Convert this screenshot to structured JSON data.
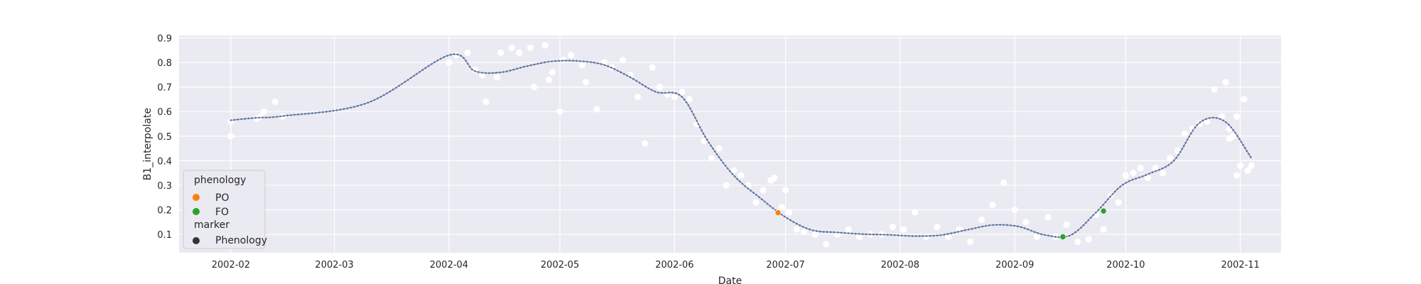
{
  "chart_data": {
    "type": "scatter",
    "title": "",
    "xlabel": "Date",
    "ylabel": "B1_interpolate",
    "x_ticks": [
      "2002-02",
      "2002-03",
      "2002-04",
      "2002-05",
      "2002-06",
      "2002-07",
      "2002-08",
      "2002-09",
      "2002-10",
      "2002-11"
    ],
    "y_ticks": [
      "0.1",
      "0.2",
      "0.3",
      "0.4",
      "0.5",
      "0.6",
      "0.7",
      "0.8",
      "0.9"
    ],
    "xlim": [
      "2002-01-18",
      "2002-11-12"
    ],
    "ylim": [
      0.025,
      0.91
    ],
    "grid": true,
    "legend": {
      "placement": "lower-left",
      "title_phenology": "phenology",
      "title_marker": "marker",
      "entries": [
        {
          "label": "PO",
          "color": "#ff7f0e"
        },
        {
          "label": "FO",
          "color": "#2ca02c"
        },
        {
          "label": "Phenology",
          "color": "#333333"
        }
      ]
    },
    "colors": {
      "background": "#eaeaf2",
      "grid": "#ffffff",
      "line": "#808080",
      "fitted": "#4c72b0",
      "observed": "#ffffff"
    },
    "series": [
      {
        "name": "",
        "kind": "observed",
        "x": [
          "2002-02-01",
          "2002-02-01",
          "2002-02-08",
          "2002-02-09",
          "2002-02-10",
          "2002-02-13",
          "2002-02-15",
          "2002-04-01",
          "2002-04-03",
          "2002-04-06",
          "2002-04-08",
          "2002-04-10",
          "2002-04-11",
          "2002-04-14",
          "2002-04-15",
          "2002-04-18",
          "2002-04-20",
          "2002-04-23",
          "2002-04-24",
          "2002-04-27",
          "2002-04-28",
          "2002-04-29",
          "2002-05-01",
          "2002-05-02",
          "2002-05-04",
          "2002-05-07",
          "2002-05-08",
          "2002-05-11",
          "2002-05-13",
          "2002-05-15",
          "2002-05-18",
          "2002-05-20",
          "2002-05-22",
          "2002-05-24",
          "2002-05-26",
          "2002-05-28",
          "2002-05-30",
          "2002-06-01",
          "2002-06-03",
          "2002-06-05",
          "2002-06-07",
          "2002-06-09",
          "2002-06-11",
          "2002-06-13",
          "2002-06-15",
          "2002-06-17",
          "2002-06-19",
          "2002-06-21",
          "2002-06-23",
          "2002-06-25",
          "2002-06-27",
          "2002-06-28",
          "2002-06-30",
          "2002-07-01",
          "2002-07-02",
          "2002-07-04",
          "2002-07-06",
          "2002-07-09",
          "2002-07-12",
          "2002-07-15",
          "2002-07-18",
          "2002-07-21",
          "2002-07-24",
          "2002-07-27",
          "2002-07-30",
          "2002-08-02",
          "2002-08-05",
          "2002-08-08",
          "2002-08-11",
          "2002-08-14",
          "2002-08-17",
          "2002-08-20",
          "2002-08-23",
          "2002-08-26",
          "2002-08-29",
          "2002-09-01",
          "2002-09-04",
          "2002-09-07",
          "2002-09-10",
          "2002-09-12",
          "2002-09-15",
          "2002-09-18",
          "2002-09-21",
          "2002-09-23",
          "2002-09-25",
          "2002-09-27",
          "2002-09-29",
          "2002-10-01",
          "2002-10-03",
          "2002-10-05",
          "2002-10-07",
          "2002-10-09",
          "2002-10-11",
          "2002-10-13",
          "2002-10-15",
          "2002-10-17",
          "2002-10-19",
          "2002-10-21",
          "2002-10-23",
          "2002-10-25",
          "2002-10-27",
          "2002-10-29",
          "2002-10-31",
          "2002-11-02"
        ],
        "y": [
          0.5,
          0.56,
          0.57,
          0.58,
          0.6,
          0.64,
          0.58,
          0.8,
          0.83,
          0.84,
          0.77,
          0.75,
          0.64,
          0.74,
          0.84,
          0.86,
          0.84,
          0.86,
          0.7,
          0.87,
          0.73,
          0.76,
          0.6,
          0.81,
          0.83,
          0.79,
          0.72,
          0.61,
          0.8,
          0.78,
          0.81,
          0.75,
          0.66,
          0.47,
          0.78,
          0.7,
          0.67,
          0.66,
          0.68,
          0.65,
          0.55,
          0.48,
          0.41,
          0.45,
          0.3,
          0.36,
          0.34,
          0.3,
          0.23,
          0.28,
          0.32,
          0.33,
          0.21,
          0.28,
          0.19,
          0.12,
          0.11,
          0.1,
          0.06,
          0.1,
          0.12,
          0.09,
          0.1,
          0.1,
          0.13,
          0.12,
          0.19,
          0.09,
          0.13,
          0.09,
          0.12,
          0.07,
          0.16,
          0.22,
          0.31,
          0.2,
          0.15,
          0.09,
          0.17,
          0.09,
          0.14,
          0.07,
          0.08,
          0.18,
          0.12,
          0.26,
          0.23,
          0.34,
          0.35,
          0.37,
          0.33,
          0.37,
          0.35,
          0.41,
          0.44,
          0.51,
          0.53,
          0.55,
          0.56,
          0.69,
          0.58,
          0.49,
          0.58,
          0.65
        ],
        "y_extra_late": [
          0.72,
          0.53,
          0.5,
          0.34,
          0.38,
          0.36,
          0.38
        ]
      },
      {
        "name": "",
        "kind": "fitted",
        "x": [
          "2002-02-01",
          "2002-02-08",
          "2002-02-15",
          "2002-03-10",
          "2002-04-01",
          "2002-04-08",
          "2002-04-15",
          "2002-04-22",
          "2002-04-29",
          "2002-05-06",
          "2002-05-13",
          "2002-05-20",
          "2002-05-27",
          "2002-06-03",
          "2002-06-10",
          "2002-06-17",
          "2002-06-24",
          "2002-07-01",
          "2002-07-08",
          "2002-07-15",
          "2002-07-22",
          "2002-07-29",
          "2002-08-05",
          "2002-08-12",
          "2002-08-19",
          "2002-08-26",
          "2002-09-02",
          "2002-09-09",
          "2002-09-16",
          "2002-09-23",
          "2002-09-30",
          "2002-10-07",
          "2002-10-14",
          "2002-10-21",
          "2002-10-28",
          "2002-11-04"
        ],
        "y": [
          0.565,
          0.575,
          0.582,
          0.636,
          0.83,
          0.765,
          0.76,
          0.785,
          0.805,
          0.806,
          0.79,
          0.74,
          0.68,
          0.66,
          0.48,
          0.34,
          0.25,
          0.17,
          0.118,
          0.108,
          0.101,
          0.098,
          0.093,
          0.097,
          0.118,
          0.138,
          0.132,
          0.098,
          0.096,
          0.19,
          0.3,
          0.345,
          0.4,
          0.555,
          0.558,
          0.41
        ]
      }
    ],
    "phenology_points": [
      {
        "label": "PO",
        "x": "2002-06-29",
        "y": 0.188
      },
      {
        "label": "FO",
        "x": "2002-09-14",
        "y": 0.09
      },
      {
        "label": "FO",
        "x": "2002-09-25",
        "y": 0.195
      }
    ]
  }
}
